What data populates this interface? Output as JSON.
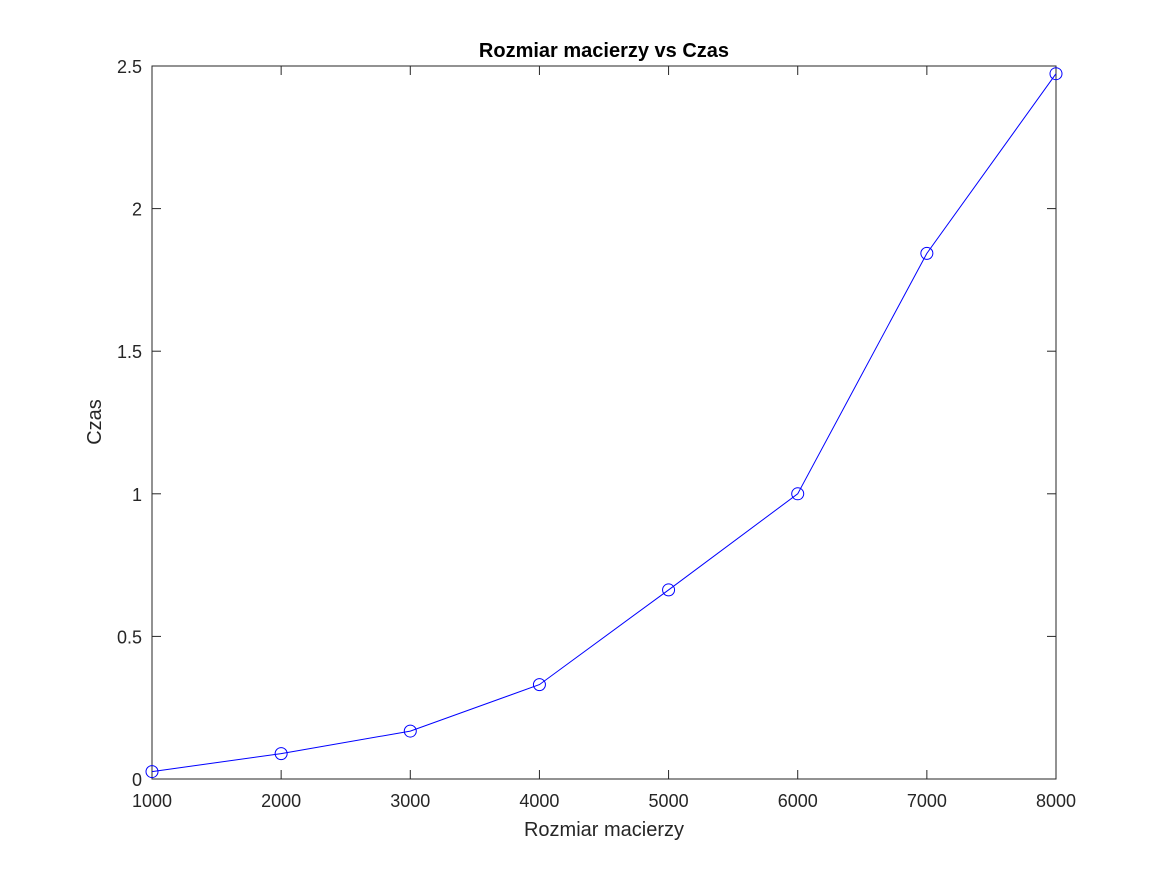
{
  "chart_data": {
    "type": "line",
    "title": "Rozmiar macierzy vs Czas",
    "xlabel": "Rozmiar macierzy",
    "ylabel": "Czas",
    "x": [
      1000,
      2000,
      3000,
      4000,
      5000,
      6000,
      7000,
      8000
    ],
    "series": [
      {
        "values": [
          0.026,
          0.089,
          0.168,
          0.331,
          0.663,
          1.0,
          1.843,
          2.473
        ],
        "color": "#0000ff",
        "marker": "circle"
      }
    ],
    "xlim": [
      1000,
      8000
    ],
    "ylim": [
      0,
      2.5
    ],
    "xticks": [
      1000,
      2000,
      3000,
      4000,
      5000,
      6000,
      7000,
      8000
    ],
    "yticks": [
      0,
      0.5,
      1,
      1.5,
      2,
      2.5
    ],
    "xtick_labels": [
      "1000",
      "2000",
      "3000",
      "4000",
      "5000",
      "6000",
      "7000",
      "8000"
    ],
    "ytick_labels": [
      "0",
      "0.5",
      "1",
      "1.5",
      "2",
      "2.5"
    ],
    "grid": false,
    "legend": "none"
  }
}
